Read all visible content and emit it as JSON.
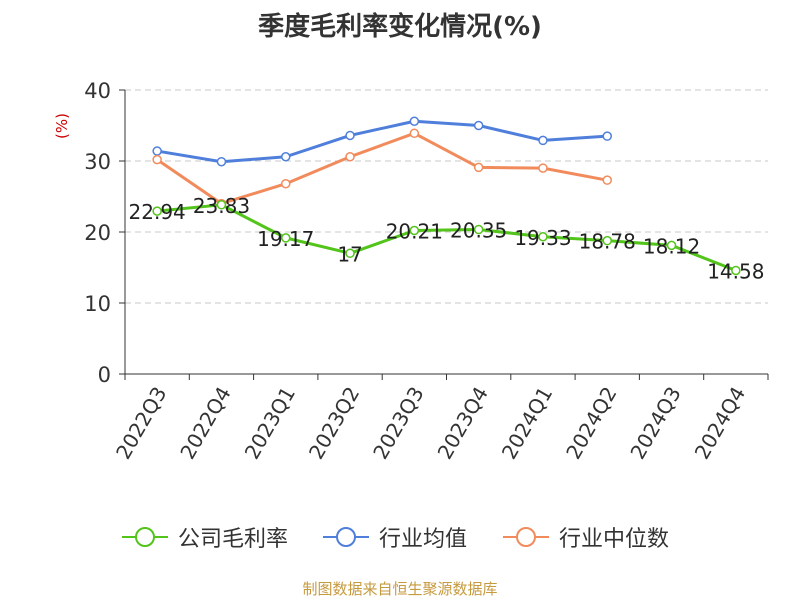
{
  "title": "季度毛利率变化情况(%)",
  "source": "制图数据来自恒生聚源数据库",
  "chart_data": {
    "type": "line",
    "title": "季度毛利率变化情况(%)",
    "ylabel": "(%)",
    "xlabel": "",
    "ylim": [
      0,
      40
    ],
    "yticks": [
      0,
      10,
      20,
      30,
      40
    ],
    "categories": [
      "2022Q3",
      "2022Q4",
      "2023Q1",
      "2023Q2",
      "2023Q3",
      "2023Q4",
      "2024Q1",
      "2024Q2",
      "2024Q3",
      "2024Q4"
    ],
    "grid": true,
    "legend_position": "bottom",
    "series": [
      {
        "name": "公司毛利率",
        "color": "#52c41a",
        "labeled": true,
        "values": [
          22.94,
          23.83,
          19.17,
          17,
          20.21,
          20.35,
          19.33,
          18.78,
          18.12,
          14.58
        ],
        "labels": [
          "22.94",
          "23.83",
          "19.17",
          "17",
          "20.21",
          "20.35",
          "19.33",
          "18.78",
          "18.12",
          "14.58"
        ]
      },
      {
        "name": "行业均值",
        "color": "#4f7fdb",
        "labeled": false,
        "values": [
          31.4,
          29.9,
          30.6,
          33.6,
          35.6,
          35.0,
          32.9,
          33.5,
          null,
          null
        ]
      },
      {
        "name": "行业中位数",
        "color": "#f28b5c",
        "labeled": false,
        "values": [
          30.2,
          24.0,
          26.8,
          30.6,
          33.9,
          29.1,
          29.0,
          27.3,
          null,
          null
        ]
      }
    ]
  }
}
